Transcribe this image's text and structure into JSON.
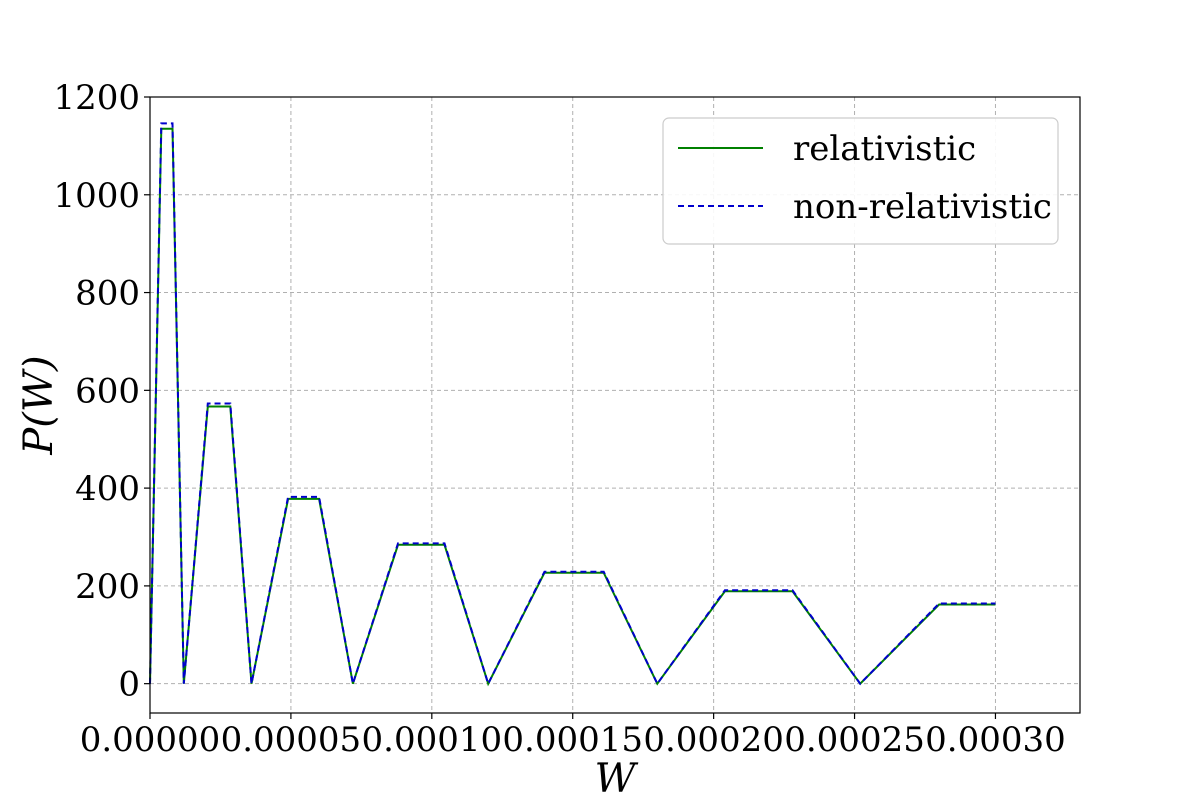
{
  "chart_data": {
    "type": "line",
    "xlabel": "W",
    "ylabel": "P(W)",
    "xlim": [
      0.0,
      0.00033
    ],
    "ylim": [
      -60,
      1200
    ],
    "x_ticks": [
      "0.00000",
      "0.00005",
      "0.00010",
      "0.00015",
      "0.00020",
      "0.00025",
      "0.00030"
    ],
    "x_tick_values": [
      0.0,
      5e-05,
      0.0001,
      0.00015,
      0.0002,
      0.00025,
      0.0003
    ],
    "y_ticks": [
      "0",
      "200",
      "400",
      "600",
      "800",
      "1000",
      "1200"
    ],
    "y_tick_values": [
      0,
      200,
      400,
      600,
      800,
      1000,
      1200
    ],
    "grid": true,
    "legend_position": "top-right",
    "series": [
      {
        "name": "relativistic",
        "color": "#008000",
        "style": "solid",
        "x": [
          0.0,
          4e-06,
          8e-06,
          1.2e-05,
          2.05e-05,
          2.85e-05,
          3.6e-05,
          4.9e-05,
          6e-05,
          7.2e-05,
          8.8e-05,
          0.0001045,
          0.00012,
          0.00014,
          0.000161,
          0.00018,
          0.000204,
          0.000228,
          0.000252,
          0.00028,
          0.0003
        ],
        "y": [
          0,
          1135,
          1135,
          0,
          567,
          567,
          0,
          378,
          378,
          0,
          284,
          284,
          0,
          227,
          227,
          0,
          189,
          189,
          0,
          162,
          162
        ]
      },
      {
        "name": "non-relativistic",
        "color": "#0000cc",
        "style": "dashed",
        "x": [
          0.0,
          4e-06,
          8e-06,
          1.2e-05,
          2.05e-05,
          2.85e-05,
          3.6e-05,
          4.9e-05,
          6e-05,
          7.2e-05,
          8.8e-05,
          0.0001045,
          0.00012,
          0.00014,
          0.000161,
          0.00018,
          0.000204,
          0.000228,
          0.000252,
          0.00028,
          0.0003
        ],
        "y": [
          0,
          1146,
          1146,
          0,
          573,
          573,
          0,
          382,
          382,
          0,
          287,
          287,
          0,
          229,
          229,
          0,
          191,
          191,
          0,
          164,
          164
        ]
      }
    ]
  }
}
